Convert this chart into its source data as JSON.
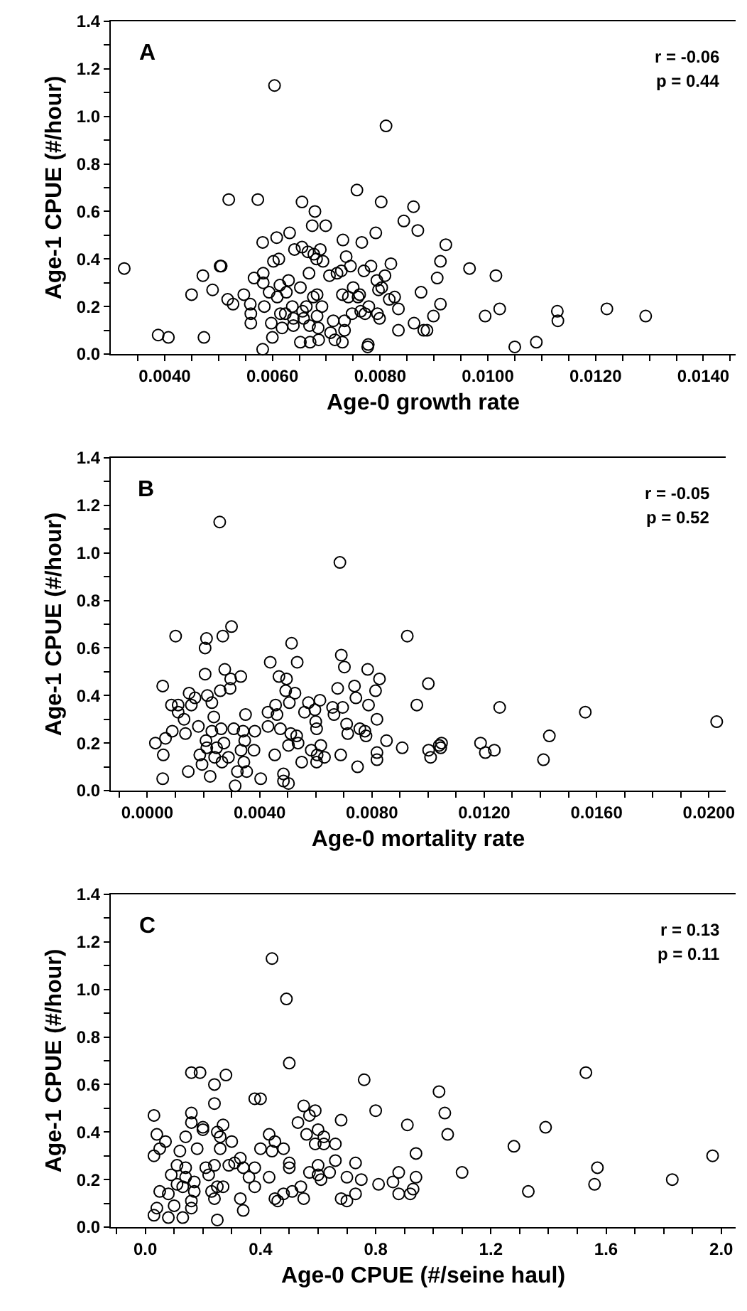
{
  "chart_data": [
    {
      "type": "scatter",
      "xlabel": "Age-0 growth rate",
      "ylabel": "Age-1 CPUE (#/hour)",
      "annotations": [
        "A",
        "r = -0.06",
        "p = 0.44"
      ],
      "marker": "circle",
      "color": "#000000",
      "grid": false,
      "legend": false,
      "xlim": [
        0.003,
        0.0146
      ],
      "ylim": [
        0,
        1.4
      ],
      "xticks": [
        {
          "value": 0.0035,
          "label": null
        },
        {
          "value": 0.004,
          "label": "0.0040"
        },
        {
          "value": 0.0045,
          "label": null
        },
        {
          "value": 0.005,
          "label": null
        },
        {
          "value": 0.0055,
          "label": null
        },
        {
          "value": 0.006,
          "label": "0.0060"
        },
        {
          "value": 0.0065,
          "label": null
        },
        {
          "value": 0.007,
          "label": null
        },
        {
          "value": 0.0075,
          "label": null
        },
        {
          "value": 0.008,
          "label": "0.0080"
        },
        {
          "value": 0.0085,
          "label": null
        },
        {
          "value": 0.009,
          "label": null
        },
        {
          "value": 0.0095,
          "label": null
        },
        {
          "value": 0.01,
          "label": "0.0100"
        },
        {
          "value": 0.0105,
          "label": null
        },
        {
          "value": 0.011,
          "label": null
        },
        {
          "value": 0.0115,
          "label": null
        },
        {
          "value": 0.012,
          "label": "0.0120"
        },
        {
          "value": 0.0125,
          "label": null
        },
        {
          "value": 0.013,
          "label": null
        },
        {
          "value": 0.0135,
          "label": null
        },
        {
          "value": 0.014,
          "label": "0.0140"
        },
        {
          "value": 0.0145,
          "label": null
        }
      ],
      "yticks": [
        {
          "value": 0,
          "label": "0.0"
        },
        {
          "value": 0.1,
          "label": null
        },
        {
          "value": 0.2,
          "label": "0.2"
        },
        {
          "value": 0.3,
          "label": null
        },
        {
          "value": 0.4,
          "label": "0.4"
        },
        {
          "value": 0.5,
          "label": null
        },
        {
          "value": 0.6,
          "label": "0.6"
        },
        {
          "value": 0.7,
          "label": null
        },
        {
          "value": 0.8,
          "label": "0.8"
        },
        {
          "value": 0.9,
          "label": null
        },
        {
          "value": 1.0,
          "label": "1.0"
        },
        {
          "value": 1.1,
          "label": null
        },
        {
          "value": 1.2,
          "label": "1.2"
        },
        {
          "value": 1.3,
          "label": null
        },
        {
          "value": 1.4,
          "label": "1.4"
        }
      ],
      "x": [
        0.00325,
        0.00388,
        0.00407,
        0.0045,
        0.00471,
        0.00473,
        0.00489,
        0.00503,
        0.00505,
        0.00517,
        0.00519,
        0.00527,
        0.00547,
        0.00559,
        0.0056,
        0.0056,
        0.00566,
        0.00573,
        0.00582,
        0.00583,
        0.00583,
        0.00585,
        0.00582,
        0.00594,
        0.00598,
        0.006,
        0.00602,
        0.00604,
        0.00608,
        0.00609,
        0.00612,
        0.00614,
        0.00615,
        0.00618,
        0.00624,
        0.00626,
        0.0063,
        0.00632,
        0.00637,
        0.00639,
        0.00639,
        0.00641,
        0.00652,
        0.00652,
        0.00655,
        0.00655,
        0.00656,
        0.00658,
        0.00663,
        0.00666,
        0.00668,
        0.00669,
        0.0067,
        0.00674,
        0.00676,
        0.00677,
        0.00679,
        0.00682,
        0.00683,
        0.00683,
        0.00685,
        0.00686,
        0.00689,
        0.00692,
        0.00694,
        0.00699,
        0.00706,
        0.00708,
        0.00713,
        0.00716,
        0.0072,
        0.00728,
        0.0073,
        0.0073,
        0.00731,
        0.00734,
        0.00734,
        0.00737,
        0.00741,
        0.00745,
        0.00748,
        0.0075,
        0.00757,
        0.00759,
        0.00762,
        0.00764,
        0.00766,
        0.0077,
        0.00772,
        0.00777,
        0.00778,
        0.00783,
        0.00779,
        0.00792,
        0.00794,
        0.00795,
        0.00797,
        0.00799,
        0.00802,
        0.00803,
        0.00809,
        0.00811,
        0.00817,
        0.0082,
        0.00827,
        0.00834,
        0.00834,
        0.00844,
        0.00862,
        0.00863,
        0.0087,
        0.00876,
        0.00881,
        0.00887,
        0.00899,
        0.00906,
        0.00912,
        0.00912,
        0.00922,
        0.00966,
        0.00995,
        0.01015,
        0.01022,
        0.0105,
        0.0109,
        0.01129,
        0.0113,
        0.01221,
        0.01293
      ],
      "values": [
        0.36,
        0.08,
        0.07,
        0.25,
        0.33,
        0.07,
        0.27,
        0.37,
        0.37,
        0.23,
        0.65,
        0.21,
        0.25,
        0.21,
        0.17,
        0.13,
        0.32,
        0.65,
        0.47,
        0.34,
        0.3,
        0.2,
        0.02,
        0.26,
        0.13,
        0.07,
        0.39,
        1.13,
        0.49,
        0.24,
        0.4,
        0.29,
        0.17,
        0.11,
        0.17,
        0.26,
        0.31,
        0.51,
        0.2,
        0.15,
        0.12,
        0.44,
        0.28,
        0.05,
        0.64,
        0.45,
        0.18,
        0.15,
        0.2,
        0.43,
        0.34,
        0.12,
        0.05,
        0.54,
        0.24,
        0.42,
        0.6,
        0.4,
        0.25,
        0.16,
        0.11,
        0.06,
        0.44,
        0.2,
        0.39,
        0.54,
        0.33,
        0.09,
        0.14,
        0.06,
        0.34,
        0.35,
        0.25,
        0.05,
        0.48,
        0.14,
        0.1,
        0.41,
        0.24,
        0.37,
        0.17,
        0.28,
        0.69,
        0.24,
        0.25,
        0.18,
        0.47,
        0.35,
        0.17,
        0.03,
        0.04,
        0.37,
        0.2,
        0.51,
        0.31,
        0.17,
        0.27,
        0.15,
        0.64,
        0.28,
        0.33,
        0.96,
        0.23,
        0.38,
        0.24,
        0.19,
        0.1,
        0.56,
        0.62,
        0.13,
        0.52,
        0.26,
        0.1,
        0.1,
        0.16,
        0.32,
        0.39,
        0.21,
        0.46,
        0.36,
        0.16,
        0.33,
        0.19,
        0.03,
        0.05,
        0.18,
        0.14,
        0.19,
        0.16
      ]
    },
    {
      "type": "scatter",
      "xlabel": "Age-0 mortality rate",
      "ylabel": "Age-1 CPUE (#/hour)",
      "annotations": [
        "B",
        "r = -0.05",
        "p = 0.52"
      ],
      "marker": "circle",
      "color": "#000000",
      "grid": false,
      "legend": false,
      "xlim": [
        -0.0013,
        0.0206
      ],
      "ylim": [
        0,
        1.4
      ],
      "xticks": [
        {
          "value": -0.001,
          "label": null
        },
        {
          "value": 0,
          "label": "0.0000"
        },
        {
          "value": 0.001,
          "label": null
        },
        {
          "value": 0.002,
          "label": null
        },
        {
          "value": 0.003,
          "label": null
        },
        {
          "value": 0.004,
          "label": "0.0040"
        },
        {
          "value": 0.005,
          "label": null
        },
        {
          "value": 0.006,
          "label": null
        },
        {
          "value": 0.007,
          "label": null
        },
        {
          "value": 0.008,
          "label": "0.0080"
        },
        {
          "value": 0.009,
          "label": null
        },
        {
          "value": 0.01,
          "label": null
        },
        {
          "value": 0.011,
          "label": null
        },
        {
          "value": 0.012,
          "label": "0.0120"
        },
        {
          "value": 0.013,
          "label": null
        },
        {
          "value": 0.014,
          "label": null
        },
        {
          "value": 0.015,
          "label": null
        },
        {
          "value": 0.016,
          "label": "0.0160"
        },
        {
          "value": 0.017,
          "label": null
        },
        {
          "value": 0.018,
          "label": null
        },
        {
          "value": 0.019,
          "label": null
        },
        {
          "value": 0.02,
          "label": "0.0200"
        }
      ],
      "yticks": [
        {
          "value": 0,
          "label": "0.0"
        },
        {
          "value": 0.1,
          "label": null
        },
        {
          "value": 0.2,
          "label": "0.2"
        },
        {
          "value": 0.3,
          "label": null
        },
        {
          "value": 0.4,
          "label": "0.4"
        },
        {
          "value": 0.5,
          "label": null
        },
        {
          "value": 0.6,
          "label": "0.6"
        },
        {
          "value": 0.7,
          "label": null
        },
        {
          "value": 0.8,
          "label": "0.8"
        },
        {
          "value": 0.9,
          "label": null
        },
        {
          "value": 1.0,
          "label": "1.0"
        },
        {
          "value": 1.1,
          "label": null
        },
        {
          "value": 1.2,
          "label": "1.2"
        },
        {
          "value": 1.3,
          "label": null
        },
        {
          "value": 1.4,
          "label": "1.4"
        }
      ],
      "x": [
        0.00029,
        0.00055,
        0.00057,
        0.00055,
        0.00065,
        0.00086,
        0.00089,
        0.00101,
        0.0011,
        0.0011,
        0.00131,
        0.00136,
        0.00146,
        0.00149,
        0.00157,
        0.0017,
        0.00182,
        0.00187,
        0.00195,
        0.00206,
        0.00206,
        0.00211,
        0.00209,
        0.00212,
        0.00214,
        0.00224,
        0.0023,
        0.0023,
        0.00237,
        0.0024,
        0.00247,
        0.00258,
        0.0026,
        0.00263,
        0.00266,
        0.00269,
        0.00273,
        0.00276,
        0.00289,
        0.00295,
        0.00297,
        0.003,
        0.00308,
        0.00313,
        0.00321,
        0.00333,
        0.00334,
        0.00341,
        0.00344,
        0.00347,
        0.0035,
        0.00354,
        0.0038,
        0.00383,
        0.00404,
        0.0043,
        0.0043,
        0.00438,
        0.00454,
        0.00457,
        0.00462,
        0.00469,
        0.00474,
        0.00485,
        0.00485,
        0.00493,
        0.00496,
        0.00503,
        0.00506,
        0.00503,
        0.00511,
        0.00514,
        0.00526,
        0.00534,
        0.00532,
        0.00537,
        0.0055,
        0.0056,
        0.00574,
        0.00584,
        0.00597,
        0.006,
        0.00603,
        0.00603,
        0.00605,
        0.00615,
        0.00618,
        0.00631,
        0.0066,
        0.00665,
        0.00678,
        0.00686,
        0.00691,
        0.00689,
        0.00696,
        0.00702,
        0.0071,
        0.00714,
        0.00738,
        0.00743,
        0.00749,
        0.00757,
        0.00775,
        0.00779,
        0.00785,
        0.00788,
        0.00813,
        0.00818,
        0.00818,
        0.00818,
        0.00827,
        0.00852,
        0.00908,
        0.00926,
        0.0096,
        0.01001,
        0.01002,
        0.01009,
        0.0104,
        0.01045,
        0.01048,
        0.01187,
        0.01204,
        0.01236,
        0.01255,
        0.01411,
        0.01432,
        0.0156,
        0.02028
      ],
      "values": [
        0.2,
        0.44,
        0.15,
        0.05,
        0.22,
        0.36,
        0.25,
        0.65,
        0.33,
        0.36,
        0.3,
        0.24,
        0.08,
        0.41,
        0.36,
        0.39,
        0.27,
        0.15,
        0.11,
        0.49,
        0.6,
        0.64,
        0.21,
        0.18,
        0.4,
        0.06,
        0.37,
        0.25,
        0.31,
        0.14,
        0.18,
        1.13,
        0.42,
        0.26,
        0.12,
        0.65,
        0.2,
        0.51,
        0.14,
        0.43,
        0.47,
        0.69,
        0.26,
        0.02,
        0.08,
        0.48,
        0.17,
        0.25,
        0.12,
        0.21,
        0.32,
        0.08,
        0.17,
        0.25,
        0.05,
        0.33,
        0.27,
        0.54,
        0.15,
        0.36,
        0.32,
        0.48,
        0.26,
        0.07,
        0.04,
        0.42,
        0.47,
        0.03,
        0.37,
        0.19,
        0.24,
        0.62,
        0.41,
        0.54,
        0.23,
        0.2,
        0.12,
        0.33,
        0.37,
        0.17,
        0.34,
        0.29,
        0.26,
        0.12,
        0.15,
        0.38,
        0.19,
        0.14,
        0.35,
        0.32,
        0.43,
        0.96,
        0.57,
        0.15,
        0.35,
        0.52,
        0.28,
        0.24,
        0.44,
        0.39,
        0.1,
        0.26,
        0.25,
        0.23,
        0.51,
        0.36,
        0.42,
        0.3,
        0.16,
        0.13,
        0.47,
        0.21,
        0.18,
        0.65,
        0.36,
        0.45,
        0.17,
        0.14,
        0.19,
        0.18,
        0.2,
        0.2,
        0.16,
        0.17,
        0.35,
        0.13,
        0.23,
        0.33,
        0.29
      ]
    },
    {
      "type": "scatter",
      "xlabel": "Age-0 CPUE (#/seine haul)",
      "ylabel": "Age-1 CPUE (#/hour)",
      "annotations": [
        "C",
        "r = 0.13",
        "p = 0.11"
      ],
      "marker": "circle",
      "color": "#000000",
      "grid": false,
      "legend": false,
      "xlim": [
        -0.12,
        2.05
      ],
      "ylim": [
        0,
        1.4
      ],
      "xticks": [
        {
          "value": -0.1,
          "label": null
        },
        {
          "value": 0,
          "label": "0.0"
        },
        {
          "value": 0.1,
          "label": null
        },
        {
          "value": 0.2,
          "label": null
        },
        {
          "value": 0.3,
          "label": null
        },
        {
          "value": 0.4,
          "label": "0.4"
        },
        {
          "value": 0.5,
          "label": null
        },
        {
          "value": 0.6,
          "label": null
        },
        {
          "value": 0.7,
          "label": null
        },
        {
          "value": 0.8,
          "label": "0.8"
        },
        {
          "value": 0.9,
          "label": null
        },
        {
          "value": 1.0,
          "label": null
        },
        {
          "value": 1.1,
          "label": null
        },
        {
          "value": 1.2,
          "label": "1.2"
        },
        {
          "value": 1.3,
          "label": null
        },
        {
          "value": 1.4,
          "label": null
        },
        {
          "value": 1.5,
          "label": null
        },
        {
          "value": 1.6,
          "label": "1.6"
        },
        {
          "value": 1.7,
          "label": null
        },
        {
          "value": 1.8,
          "label": null
        },
        {
          "value": 1.9,
          "label": null
        },
        {
          "value": 2.0,
          "label": "2.0"
        }
      ],
      "yticks": [
        {
          "value": 0,
          "label": "0.0"
        },
        {
          "value": 0.1,
          "label": null
        },
        {
          "value": 0.2,
          "label": "0.2"
        },
        {
          "value": 0.3,
          "label": null
        },
        {
          "value": 0.4,
          "label": "0.4"
        },
        {
          "value": 0.5,
          "label": null
        },
        {
          "value": 0.6,
          "label": "0.6"
        },
        {
          "value": 0.7,
          "label": null
        },
        {
          "value": 0.8,
          "label": "0.8"
        },
        {
          "value": 0.9,
          "label": null
        },
        {
          "value": 1.0,
          "label": "1.0"
        },
        {
          "value": 1.1,
          "label": null
        },
        {
          "value": 1.2,
          "label": "1.2"
        },
        {
          "value": 1.3,
          "label": null
        },
        {
          "value": 1.4,
          "label": "1.4"
        }
      ],
      "x": [
        0.03,
        0.03,
        0.04,
        0.03,
        0.04,
        0.05,
        0.05,
        0.07,
        0.08,
        0.08,
        0.09,
        0.1,
        0.11,
        0.11,
        0.12,
        0.13,
        0.13,
        0.14,
        0.14,
        0.14,
        0.16,
        0.16,
        0.16,
        0.16,
        0.16,
        0.17,
        0.17,
        0.18,
        0.19,
        0.2,
        0.2,
        0.21,
        0.22,
        0.23,
        0.24,
        0.24,
        0.24,
        0.24,
        0.25,
        0.25,
        0.25,
        0.26,
        0.26,
        0.27,
        0.27,
        0.28,
        0.29,
        0.3,
        0.31,
        0.33,
        0.33,
        0.34,
        0.34,
        0.36,
        0.38,
        0.38,
        0.38,
        0.4,
        0.4,
        0.43,
        0.43,
        0.44,
        0.44,
        0.45,
        0.45,
        0.46,
        0.48,
        0.48,
        0.49,
        0.5,
        0.5,
        0.5,
        0.51,
        0.53,
        0.54,
        0.55,
        0.55,
        0.56,
        0.57,
        0.57,
        0.59,
        0.59,
        0.6,
        0.6,
        0.6,
        0.61,
        0.62,
        0.62,
        0.64,
        0.66,
        0.66,
        0.68,
        0.68,
        0.7,
        0.7,
        0.73,
        0.73,
        0.75,
        0.76,
        0.8,
        0.81,
        0.86,
        0.88,
        0.88,
        0.91,
        0.92,
        0.93,
        0.94,
        0.94,
        1.02,
        1.04,
        1.05,
        1.1,
        1.28,
        1.33,
        1.39,
        1.53,
        1.56,
        1.57,
        1.83,
        1.97
      ],
      "values": [
        0.47,
        0.3,
        0.39,
        0.05,
        0.08,
        0.33,
        0.15,
        0.36,
        0.14,
        0.04,
        0.22,
        0.09,
        0.18,
        0.26,
        0.32,
        0.17,
        0.04,
        0.38,
        0.25,
        0.21,
        0.65,
        0.44,
        0.11,
        0.08,
        0.48,
        0.19,
        0.15,
        0.33,
        0.65,
        0.42,
        0.41,
        0.25,
        0.22,
        0.15,
        0.52,
        0.12,
        0.26,
        0.6,
        0.4,
        0.03,
        0.17,
        0.38,
        0.33,
        0.17,
        0.43,
        0.64,
        0.26,
        0.36,
        0.27,
        0.12,
        0.29,
        0.25,
        0.07,
        0.21,
        0.17,
        0.54,
        0.25,
        0.54,
        0.33,
        0.21,
        0.39,
        1.13,
        0.32,
        0.12,
        0.36,
        0.11,
        0.33,
        0.14,
        0.96,
        0.69,
        0.27,
        0.25,
        0.15,
        0.44,
        0.17,
        0.12,
        0.51,
        0.39,
        0.47,
        0.23,
        0.35,
        0.49,
        0.41,
        0.26,
        0.22,
        0.2,
        0.38,
        0.35,
        0.23,
        0.28,
        0.35,
        0.12,
        0.45,
        0.11,
        0.21,
        0.27,
        0.14,
        0.2,
        0.62,
        0.49,
        0.18,
        0.19,
        0.23,
        0.14,
        0.43,
        0.14,
        0.16,
        0.21,
        0.31,
        0.57,
        0.48,
        0.39,
        0.23,
        0.34,
        0.15,
        0.42,
        0.65,
        0.18,
        0.25,
        0.2,
        0.3
      ]
    }
  ]
}
